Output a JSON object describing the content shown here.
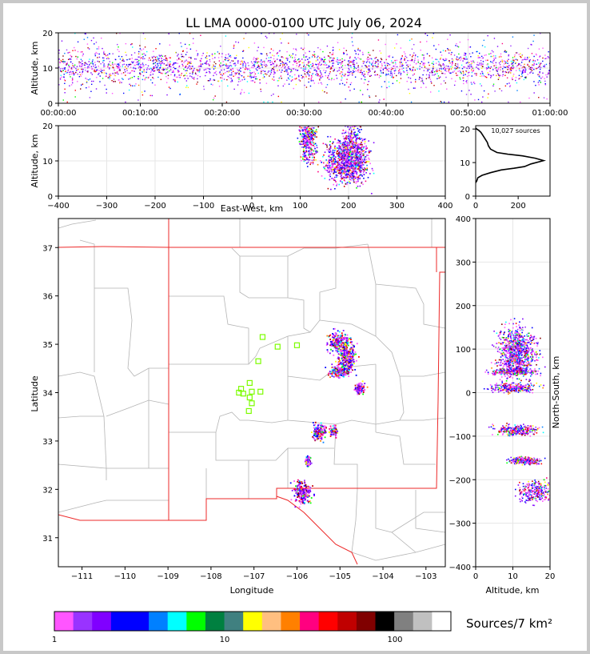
{
  "title": "LL LMA 0000-0100 UTC July 06, 2024",
  "colors": {
    "frame": "#c8c8c8",
    "border": "#ed2828",
    "county": "#bdbdbd",
    "station": "#7cfc00",
    "profile": "#000000"
  },
  "chart_data": [
    {
      "id": "time-height",
      "type": "heatmap",
      "xlabel": "",
      "ylabel": "Altitude, km",
      "ylim": [
        0,
        20
      ],
      "yticks": [
        0,
        10,
        20
      ],
      "xticklabels": [
        "00:00:00",
        "00:10:00",
        "00:20:00",
        "00:30:00",
        "00:40:00",
        "00:50:00",
        "01:00:00"
      ],
      "xlim_minutes": [
        0,
        60
      ],
      "grid": true
    },
    {
      "id": "ew-height",
      "type": "heatmap",
      "xlabel": "East-West, km",
      "ylabel": "Altitude, km",
      "xlim": [
        -400,
        400
      ],
      "xticks": [
        -400,
        -300,
        -200,
        -100,
        0,
        100,
        200,
        300,
        400
      ],
      "xticklabels": [
        "−400",
        "−300",
        "−200",
        "−100",
        "0",
        "100",
        "200",
        "300",
        "400"
      ],
      "ylim": [
        0,
        20
      ],
      "yticks": [
        0,
        10,
        20
      ],
      "grid": true,
      "clusters": [
        {
          "x": 115,
          "y": 16,
          "sx": 8,
          "sy": 3
        },
        {
          "x": 195,
          "y": 10,
          "sx": 22,
          "sy": 3
        },
        {
          "x": 210,
          "y": 14,
          "sx": 12,
          "sy": 4
        }
      ]
    },
    {
      "id": "source-histogram",
      "type": "line",
      "annotation": "10,027 sources",
      "xlim": [
        0,
        350
      ],
      "xticks": [
        0,
        200
      ],
      "ylim": [
        0,
        21
      ],
      "yticks": [
        0,
        10,
        20
      ],
      "profile": [
        [
          0,
          4
        ],
        [
          5,
          4.5
        ],
        [
          10,
          5.5
        ],
        [
          30,
          6.2
        ],
        [
          70,
          7
        ],
        [
          120,
          7.8
        ],
        [
          180,
          8.3
        ],
        [
          230,
          8.8
        ],
        [
          260,
          9.6
        ],
        [
          320,
          10.6
        ],
        [
          280,
          11.3
        ],
        [
          220,
          12
        ],
        [
          150,
          12.5
        ],
        [
          100,
          13
        ],
        [
          70,
          14
        ],
        [
          60,
          15
        ],
        [
          55,
          16
        ],
        [
          45,
          17
        ],
        [
          35,
          18
        ],
        [
          25,
          19
        ],
        [
          15,
          19.6
        ],
        [
          5,
          20
        ],
        [
          0,
          20.3
        ]
      ]
    },
    {
      "id": "plan-view-map",
      "type": "scatter",
      "xlabel": "Longitude",
      "ylabel": "Latitude",
      "xlim": [
        -111.55,
        -102.55
      ],
      "ylim": [
        30.4,
        37.6
      ],
      "xticks": [
        -111,
        -110,
        -109,
        -108,
        -107,
        -106,
        -105,
        -104,
        -103
      ],
      "xticklabels": [
        "−111",
        "−110",
        "−109",
        "−108",
        "−107",
        "−106",
        "−105",
        "−104",
        "−103"
      ],
      "yticks": [
        31,
        32,
        33,
        34,
        35,
        36,
        37
      ],
      "stations": [
        [
          -106.8,
          35.15
        ],
        [
          -106.45,
          34.95
        ],
        [
          -106.0,
          34.98
        ],
        [
          -106.9,
          34.65
        ],
        [
          -107.1,
          34.2
        ],
        [
          -107.3,
          34.08
        ],
        [
          -107.35,
          34.0
        ],
        [
          -107.25,
          33.98
        ],
        [
          -107.05,
          34.02
        ],
        [
          -106.85,
          34.02
        ],
        [
          -107.1,
          33.9
        ],
        [
          -107.05,
          33.78
        ],
        [
          -107.12,
          33.62
        ]
      ],
      "clusters": [
        {
          "lon": -105.05,
          "lat": 35.05,
          "slon": 0.12,
          "slat": 0.1
        },
        {
          "lon": -104.85,
          "lat": 34.75,
          "slon": 0.1,
          "slat": 0.18
        },
        {
          "lon": -105.05,
          "lat": 34.45,
          "slon": 0.1,
          "slat": 0.06
        },
        {
          "lon": -104.55,
          "lat": 34.1,
          "slon": 0.06,
          "slat": 0.05
        },
        {
          "lon": -105.5,
          "lat": 33.2,
          "slon": 0.08,
          "slat": 0.08
        },
        {
          "lon": -105.15,
          "lat": 33.22,
          "slon": 0.05,
          "slat": 0.05
        },
        {
          "lon": -105.75,
          "lat": 32.6,
          "slon": 0.03,
          "slat": 0.05
        },
        {
          "lon": -105.9,
          "lat": 31.95,
          "slon": 0.1,
          "slat": 0.12
        }
      ]
    },
    {
      "id": "ns-height",
      "type": "heatmap",
      "xlabel": "Altitude, km",
      "ylabel": "North-South, km",
      "xlim": [
        0,
        20
      ],
      "xticks": [
        0,
        10,
        20
      ],
      "ylim": [
        -400,
        400
      ],
      "yticks": [
        -400,
        -300,
        -200,
        -100,
        0,
        100,
        200,
        300,
        400
      ],
      "yticklabels": [
        "−400",
        "−300",
        "−200",
        "−100",
        "0",
        "100",
        "200",
        "300",
        "400"
      ],
      "grid": true,
      "clusters": [
        {
          "x": 11,
          "y": 95,
          "sx": 2.5,
          "sy": 28
        },
        {
          "x": 10,
          "y": 50,
          "sx": 3,
          "sy": 4
        },
        {
          "x": 10,
          "y": 12,
          "sx": 3,
          "sy": 5
        },
        {
          "x": 11,
          "y": -85,
          "sx": 3,
          "sy": 6
        },
        {
          "x": 13,
          "y": -155,
          "sx": 2,
          "sy": 4
        },
        {
          "x": 16,
          "y": -225,
          "sx": 2.5,
          "sy": 12
        }
      ]
    }
  ],
  "colorbar": {
    "label": "Sources/7 km²",
    "ticks": [
      "1",
      "10",
      "100"
    ],
    "colors": [
      "#ff55ff",
      "#9933ff",
      "#8000ff",
      "#0000ff",
      "#0000ff",
      "#0080ff",
      "#00ffff",
      "#00ff00",
      "#008040",
      "#408080",
      "#ffff00",
      "#ffbf80",
      "#ff8000",
      "#ff0080",
      "#ff0000",
      "#c00000",
      "#800000",
      "#000000",
      "#808080",
      "#c0c0c0",
      "#ffffff"
    ]
  }
}
